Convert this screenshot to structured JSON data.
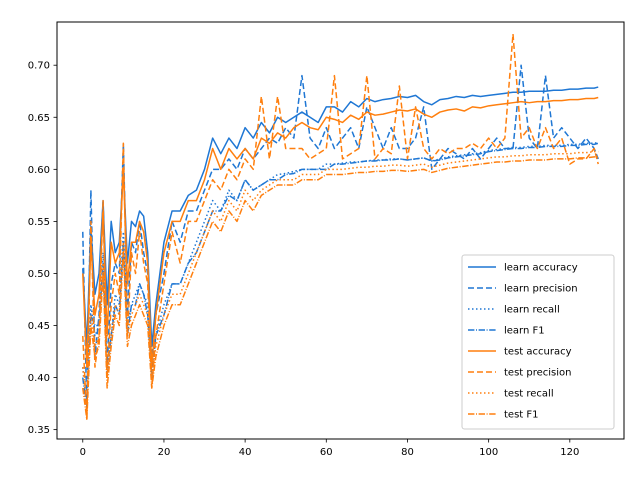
{
  "chart_data": {
    "type": "line",
    "title": "",
    "xlabel": "",
    "ylabel": "",
    "xlim": [
      -6.35,
      133.35
    ],
    "ylim": [
      0.341,
      0.7415
    ],
    "xticks": [
      0,
      20,
      40,
      60,
      80,
      100,
      120
    ],
    "xtick_labels": [
      "0",
      "20",
      "40",
      "60",
      "80",
      "100",
      "120"
    ],
    "yticks": [
      0.35,
      0.4,
      0.45,
      0.5,
      0.55,
      0.6,
      0.65,
      0.7
    ],
    "ytick_labels": [
      "0.35",
      "0.40",
      "0.45",
      "0.50",
      "0.55",
      "0.60",
      "0.65",
      "0.70"
    ],
    "grid": false,
    "legend_position": "lower-right",
    "x_anchors": [
      0,
      1,
      2,
      3,
      4,
      5,
      6,
      7,
      8,
      9,
      10,
      11,
      12,
      13,
      14,
      15,
      16,
      17,
      18,
      20,
      22,
      24,
      26,
      28,
      30,
      32,
      34,
      36,
      38,
      40,
      42,
      44,
      46,
      48,
      50,
      52,
      54,
      56,
      58,
      60,
      62,
      64,
      66,
      68,
      70,
      72,
      74,
      76,
      78,
      80,
      82,
      84,
      86,
      88,
      90,
      92,
      94,
      96,
      98,
      100,
      102,
      104,
      106,
      108,
      110,
      112,
      114,
      116,
      118,
      120,
      122,
      124,
      126,
      127
    ],
    "series": [
      {
        "name": "learn accuracy",
        "color": "#1f77d4",
        "dash": "solid",
        "anchors": [
          0.505,
          0.43,
          0.545,
          0.48,
          0.5,
          0.57,
          0.47,
          0.55,
          0.52,
          0.53,
          0.6,
          0.51,
          0.55,
          0.545,
          0.56,
          0.555,
          0.52,
          0.43,
          0.47,
          0.53,
          0.56,
          0.56,
          0.575,
          0.58,
          0.6,
          0.63,
          0.615,
          0.63,
          0.62,
          0.64,
          0.63,
          0.645,
          0.635,
          0.65,
          0.645,
          0.65,
          0.655,
          0.65,
          0.645,
          0.66,
          0.66,
          0.655,
          0.665,
          0.66,
          0.668,
          0.665,
          0.667,
          0.668,
          0.67,
          0.669,
          0.671,
          0.665,
          0.662,
          0.667,
          0.668,
          0.67,
          0.669,
          0.671,
          0.67,
          0.671,
          0.672,
          0.673,
          0.674,
          0.674,
          0.675,
          0.675,
          0.675,
          0.676,
          0.676,
          0.677,
          0.677,
          0.678,
          0.678,
          0.679
        ]
      },
      {
        "name": "learn precision",
        "color": "#1f77d4",
        "dash": "dashed",
        "anchors": [
          0.54,
          0.37,
          0.58,
          0.42,
          0.46,
          0.57,
          0.41,
          0.49,
          0.51,
          0.5,
          0.625,
          0.46,
          0.53,
          0.52,
          0.55,
          0.52,
          0.5,
          0.42,
          0.46,
          0.5,
          0.55,
          0.53,
          0.56,
          0.56,
          0.58,
          0.6,
          0.6,
          0.61,
          0.6,
          0.62,
          0.61,
          0.62,
          0.63,
          0.625,
          0.64,
          0.63,
          0.69,
          0.63,
          0.62,
          0.64,
          0.62,
          0.63,
          0.64,
          0.62,
          0.66,
          0.64,
          0.62,
          0.64,
          0.62,
          0.62,
          0.63,
          0.66,
          0.6,
          0.61,
          0.62,
          0.615,
          0.61,
          0.62,
          0.61,
          0.62,
          0.63,
          0.62,
          0.62,
          0.7,
          0.63,
          0.62,
          0.69,
          0.63,
          0.64,
          0.63,
          0.62,
          0.63,
          0.62,
          0.61
        ]
      },
      {
        "name": "learn recall",
        "color": "#1f77d4",
        "dash": "dotted",
        "anchors": [
          0.41,
          0.37,
          0.47,
          0.44,
          0.45,
          0.52,
          0.4,
          0.44,
          0.48,
          0.47,
          0.54,
          0.45,
          0.47,
          0.48,
          0.49,
          0.48,
          0.47,
          0.41,
          0.44,
          0.47,
          0.49,
          0.49,
          0.51,
          0.53,
          0.55,
          0.57,
          0.56,
          0.58,
          0.57,
          0.59,
          0.58,
          0.585,
          0.59,
          0.595,
          0.596,
          0.598,
          0.6,
          0.6,
          0.6,
          0.605,
          0.605,
          0.606,
          0.607,
          0.607,
          0.608,
          0.609,
          0.609,
          0.61,
          0.61,
          0.609,
          0.61,
          0.611,
          0.608,
          0.61,
          0.612,
          0.613,
          0.614,
          0.615,
          0.616,
          0.618,
          0.619,
          0.62,
          0.621,
          0.621,
          0.622,
          0.622,
          0.623,
          0.623,
          0.623,
          0.624,
          0.624,
          0.625,
          0.625,
          0.626
        ]
      },
      {
        "name": "learn F1",
        "color": "#1f77d4",
        "dash": "dashdot",
        "anchors": [
          0.4,
          0.37,
          0.46,
          0.45,
          0.45,
          0.51,
          0.41,
          0.44,
          0.47,
          0.46,
          0.53,
          0.44,
          0.47,
          0.47,
          0.49,
          0.48,
          0.46,
          0.4,
          0.44,
          0.46,
          0.49,
          0.49,
          0.51,
          0.52,
          0.54,
          0.56,
          0.56,
          0.575,
          0.57,
          0.59,
          0.58,
          0.585,
          0.59,
          0.59,
          0.595,
          0.596,
          0.6,
          0.6,
          0.6,
          0.6,
          0.605,
          0.605,
          0.606,
          0.607,
          0.608,
          0.608,
          0.609,
          0.609,
          0.61,
          0.609,
          0.61,
          0.611,
          0.608,
          0.609,
          0.611,
          0.612,
          0.613,
          0.614,
          0.615,
          0.617,
          0.618,
          0.619,
          0.62,
          0.62,
          0.621,
          0.621,
          0.622,
          0.622,
          0.622,
          0.623,
          0.623,
          0.624,
          0.624,
          0.625
        ]
      },
      {
        "name": "test accuracy",
        "color": "#ff7f0e",
        "dash": "solid",
        "anchors": [
          0.5,
          0.41,
          0.53,
          0.46,
          0.48,
          0.56,
          0.44,
          0.53,
          0.51,
          0.52,
          0.6,
          0.49,
          0.53,
          0.53,
          0.55,
          0.54,
          0.51,
          0.41,
          0.46,
          0.52,
          0.55,
          0.55,
          0.57,
          0.57,
          0.59,
          0.62,
          0.6,
          0.62,
          0.61,
          0.62,
          0.61,
          0.63,
          0.625,
          0.635,
          0.63,
          0.64,
          0.645,
          0.64,
          0.638,
          0.65,
          0.648,
          0.645,
          0.652,
          0.648,
          0.655,
          0.652,
          0.653,
          0.655,
          0.657,
          0.656,
          0.658,
          0.653,
          0.65,
          0.655,
          0.657,
          0.658,
          0.656,
          0.66,
          0.659,
          0.661,
          0.662,
          0.663,
          0.664,
          0.665,
          0.664,
          0.665,
          0.665,
          0.666,
          0.666,
          0.667,
          0.667,
          0.668,
          0.668,
          0.669
        ]
      },
      {
        "name": "test precision",
        "color": "#ff7f0e",
        "dash": "dashed",
        "anchors": [
          0.44,
          0.36,
          0.55,
          0.41,
          0.44,
          0.57,
          0.4,
          0.47,
          0.5,
          0.48,
          0.625,
          0.44,
          0.52,
          0.5,
          0.54,
          0.51,
          0.49,
          0.39,
          0.44,
          0.49,
          0.54,
          0.51,
          0.55,
          0.55,
          0.57,
          0.59,
          0.58,
          0.6,
          0.59,
          0.61,
          0.6,
          0.67,
          0.61,
          0.67,
          0.62,
          0.62,
          0.62,
          0.61,
          0.615,
          0.62,
          0.69,
          0.61,
          0.615,
          0.62,
          0.69,
          0.61,
          0.62,
          0.615,
          0.68,
          0.61,
          0.66,
          0.62,
          0.61,
          0.62,
          0.615,
          0.62,
          0.62,
          0.625,
          0.62,
          0.63,
          0.62,
          0.63,
          0.73,
          0.63,
          0.64,
          0.62,
          0.64,
          0.62,
          0.63,
          0.605,
          0.61,
          0.61,
          0.62,
          0.605
        ]
      },
      {
        "name": "test recall",
        "color": "#ff7f0e",
        "dash": "dotted",
        "anchors": [
          0.41,
          0.37,
          0.46,
          0.43,
          0.44,
          0.51,
          0.4,
          0.44,
          0.47,
          0.46,
          0.53,
          0.44,
          0.46,
          0.47,
          0.48,
          0.47,
          0.46,
          0.4,
          0.43,
          0.46,
          0.48,
          0.48,
          0.5,
          0.52,
          0.54,
          0.56,
          0.55,
          0.57,
          0.56,
          0.58,
          0.57,
          0.58,
          0.585,
          0.59,
          0.59,
          0.59,
          0.595,
          0.595,
          0.595,
          0.6,
          0.6,
          0.6,
          0.601,
          0.602,
          0.602,
          0.603,
          0.603,
          0.604,
          0.604,
          0.603,
          0.604,
          0.605,
          0.602,
          0.604,
          0.606,
          0.607,
          0.608,
          0.609,
          0.61,
          0.611,
          0.612,
          0.612,
          0.613,
          0.613,
          0.614,
          0.614,
          0.614,
          0.615,
          0.615,
          0.615,
          0.616,
          0.616,
          0.617,
          0.617
        ]
      },
      {
        "name": "test F1",
        "color": "#ff7f0e",
        "dash": "dashdot",
        "anchors": [
          0.39,
          0.36,
          0.45,
          0.42,
          0.43,
          0.5,
          0.39,
          0.43,
          0.46,
          0.45,
          0.52,
          0.43,
          0.45,
          0.46,
          0.47,
          0.46,
          0.45,
          0.39,
          0.42,
          0.45,
          0.47,
          0.47,
          0.49,
          0.51,
          0.53,
          0.55,
          0.54,
          0.56,
          0.55,
          0.57,
          0.56,
          0.575,
          0.58,
          0.585,
          0.585,
          0.585,
          0.59,
          0.59,
          0.59,
          0.595,
          0.595,
          0.595,
          0.596,
          0.597,
          0.597,
          0.598,
          0.598,
          0.599,
          0.599,
          0.598,
          0.599,
          0.6,
          0.597,
          0.599,
          0.601,
          0.602,
          0.603,
          0.604,
          0.605,
          0.606,
          0.607,
          0.607,
          0.608,
          0.608,
          0.609,
          0.609,
          0.609,
          0.61,
          0.61,
          0.61,
          0.611,
          0.611,
          0.612,
          0.612
        ]
      }
    ]
  }
}
